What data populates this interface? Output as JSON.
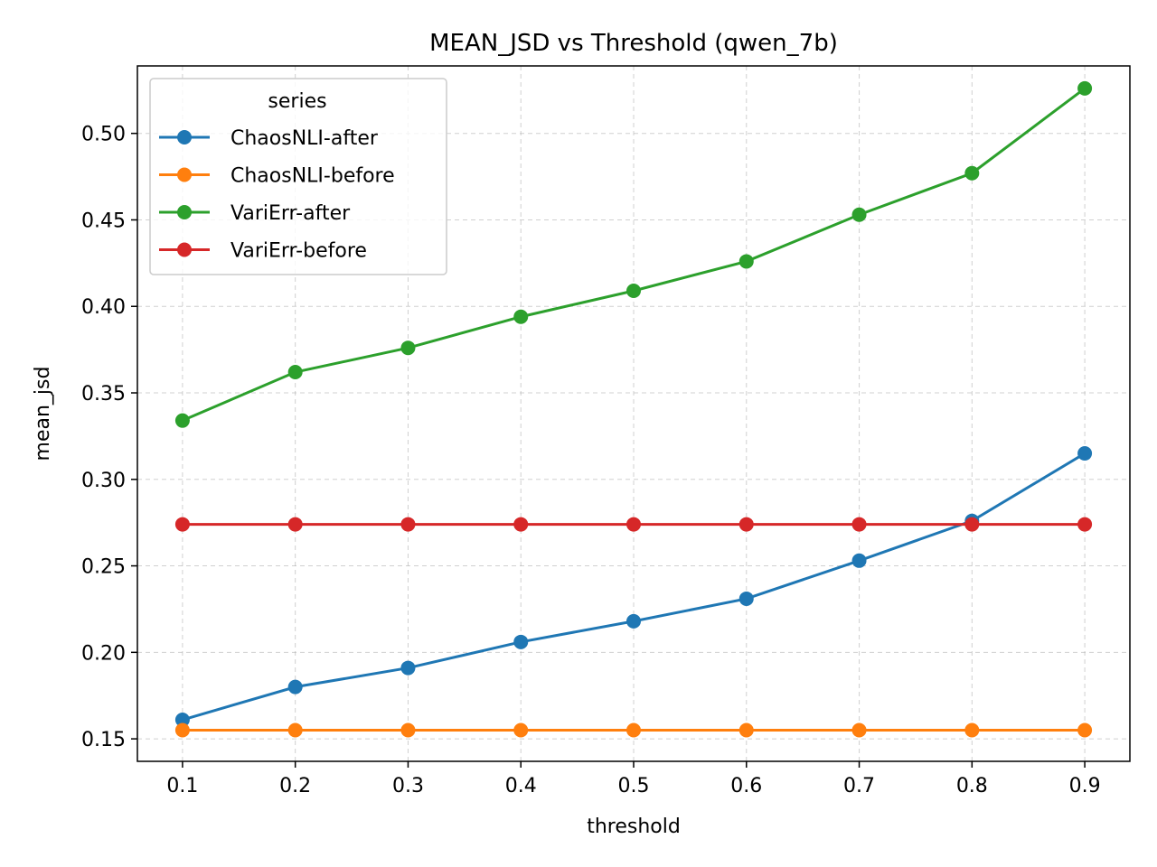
{
  "chart_data": {
    "type": "line",
    "title": "MEAN_JSD vs Threshold (qwen_7b)",
    "xlabel": "threshold",
    "ylabel": "mean_jsd",
    "x": [
      0.1,
      0.2,
      0.3,
      0.4,
      0.5,
      0.6,
      0.7,
      0.8,
      0.9
    ],
    "xlim": [
      0.06,
      0.94
    ],
    "ylim": [
      0.137,
      0.539
    ],
    "x_ticks": [
      "0.1",
      "0.2",
      "0.3",
      "0.4",
      "0.5",
      "0.6",
      "0.7",
      "0.8",
      "0.9"
    ],
    "y_ticks": [
      "0.15",
      "0.20",
      "0.25",
      "0.30",
      "0.35",
      "0.40",
      "0.45",
      "0.50"
    ],
    "grid": true,
    "legend": {
      "title": "series",
      "placement": "top-left"
    },
    "series": [
      {
        "name": "ChaosNLI-after",
        "color": "#1f77b4",
        "values": [
          0.161,
          0.18,
          0.191,
          0.206,
          0.218,
          0.231,
          0.253,
          0.276,
          0.315
        ]
      },
      {
        "name": "ChaosNLI-before",
        "color": "#ff7f0e",
        "values": [
          0.155,
          0.155,
          0.155,
          0.155,
          0.155,
          0.155,
          0.155,
          0.155,
          0.155
        ]
      },
      {
        "name": "VariErr-after",
        "color": "#2ca02c",
        "values": [
          0.334,
          0.362,
          0.376,
          0.394,
          0.409,
          0.426,
          0.453,
          0.477,
          0.526
        ]
      },
      {
        "name": "VariErr-before",
        "color": "#d62728",
        "values": [
          0.274,
          0.274,
          0.274,
          0.274,
          0.274,
          0.274,
          0.274,
          0.274,
          0.274
        ]
      }
    ]
  }
}
